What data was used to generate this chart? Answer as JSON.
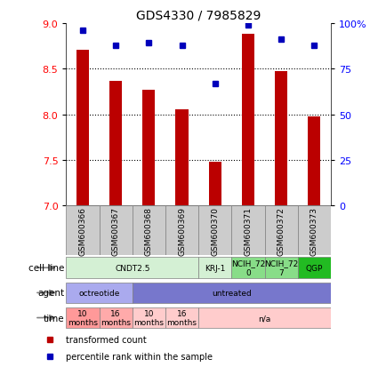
{
  "title": "GDS4330 / 7985829",
  "samples": [
    "GSM600366",
    "GSM600367",
    "GSM600368",
    "GSM600369",
    "GSM600370",
    "GSM600371",
    "GSM600372",
    "GSM600373"
  ],
  "bar_values": [
    8.71,
    8.37,
    8.27,
    8.05,
    7.48,
    8.88,
    8.47,
    7.98
  ],
  "percentile_values": [
    96,
    88,
    89,
    88,
    67,
    99,
    91,
    88
  ],
  "ylim": [
    7.0,
    9.0
  ],
  "yticks": [
    7.0,
    7.5,
    8.0,
    8.5,
    9.0
  ],
  "bar_color": "#bb0000",
  "dot_color": "#0000bb",
  "right_yticks": [
    0,
    25,
    50,
    75,
    100
  ],
  "right_yticklabels": [
    "0",
    "25",
    "50",
    "75",
    "100%"
  ],
  "cell_line_groups": [
    {
      "label": "CNDT2.5",
      "start": 0,
      "end": 4,
      "color": "#d4f0d4"
    },
    {
      "label": "KRJ-1",
      "start": 4,
      "end": 5,
      "color": "#d4f0d4"
    },
    {
      "label": "NCIH_72\n0",
      "start": 5,
      "end": 6,
      "color": "#88dd88"
    },
    {
      "label": "NCIH_72\n7",
      "start": 6,
      "end": 7,
      "color": "#88dd88"
    },
    {
      "label": "QGP",
      "start": 7,
      "end": 8,
      "color": "#22bb22"
    }
  ],
  "agent_groups": [
    {
      "label": "octreotide",
      "start": 0,
      "end": 2,
      "color": "#aaaaee"
    },
    {
      "label": "untreated",
      "start": 2,
      "end": 8,
      "color": "#7777cc"
    }
  ],
  "time_groups": [
    {
      "label": "10\nmonths",
      "start": 0,
      "end": 1,
      "color": "#ff9999"
    },
    {
      "label": "16\nmonths",
      "start": 1,
      "end": 2,
      "color": "#ffaaaa"
    },
    {
      "label": "10\nmonths",
      "start": 2,
      "end": 3,
      "color": "#ffcccc"
    },
    {
      "label": "16\nmonths",
      "start": 3,
      "end": 4,
      "color": "#ffcccc"
    },
    {
      "label": "n/a",
      "start": 4,
      "end": 8,
      "color": "#ffcccc"
    }
  ],
  "row_labels": [
    "cell line",
    "agent",
    "time"
  ],
  "legend_items": [
    {
      "label": "transformed count",
      "color": "#bb0000"
    },
    {
      "label": "percentile rank within the sample",
      "color": "#0000bb"
    }
  ],
  "sample_box_color": "#cccccc",
  "chart_bg": "#ffffff"
}
